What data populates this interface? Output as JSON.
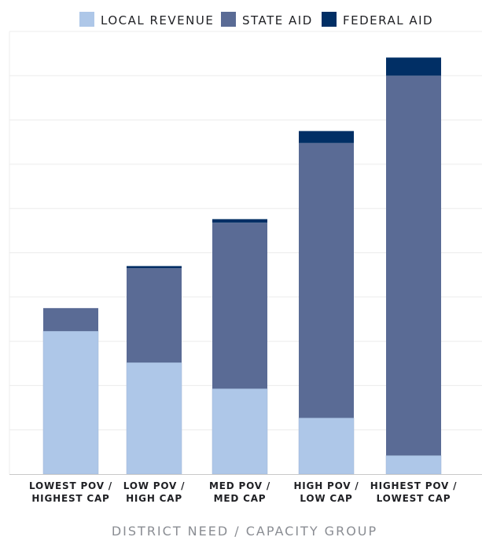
{
  "chart_data": {
    "type": "bar",
    "stacked": true,
    "title": "",
    "xlabel": "DISTRICT NEED / CAPACITY GROUP",
    "ylabel": "",
    "ylim": [
      0,
      100
    ],
    "grid": "horizontal",
    "legend_position": "top",
    "categories": [
      [
        "LOWEST POV /",
        "HIGHEST CAP"
      ],
      [
        "LOW POV /",
        "HIGH CAP"
      ],
      [
        "MED POV /",
        "MED CAP"
      ],
      [
        "HIGH POV /",
        "LOW CAP"
      ],
      [
        "HIGHEST POV /",
        "LOWEST CAP"
      ]
    ],
    "series": [
      {
        "name": "LOCAL REVENUE",
        "color": "#aec7e8",
        "values": [
          32.3,
          25.2,
          19.3,
          12.7,
          4.2
        ]
      },
      {
        "name": "STATE AID",
        "color": "#5a6b95",
        "values": [
          5.2,
          21.3,
          37.5,
          62.1,
          85.8
        ]
      },
      {
        "name": "FEDERAL AID",
        "color": "#012f65",
        "values": [
          0.0,
          0.5,
          0.8,
          2.7,
          4.1
        ]
      }
    ]
  }
}
